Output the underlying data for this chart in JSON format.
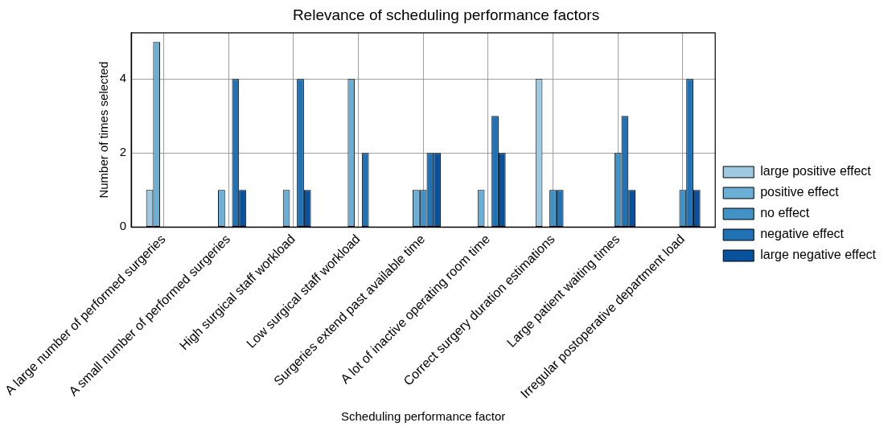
{
  "chart_data": {
    "type": "bar",
    "title": "Relevance of scheduling performance factors",
    "xlabel": "Scheduling performance factor",
    "ylabel": "Number of times selected",
    "categories": [
      "A large number of performed surgeries",
      "A small number of performed surgeries",
      "High surgical staff workload",
      "Low surgical staff workload",
      "Surgeries extend past available time",
      "A lot of inactive operating room time",
      "Correct surgery duration estimations",
      "Large patient waiting times",
      "Irregular postoperative department load"
    ],
    "series": [
      {
        "name": "large positive effect",
        "color": "#9ecae1",
        "values": [
          1,
          0,
          0,
          0,
          0,
          0,
          4,
          0,
          0
        ]
      },
      {
        "name": "positive effect",
        "color": "#6baed6",
        "values": [
          5,
          1,
          1,
          4,
          1,
          1,
          0,
          0,
          0
        ]
      },
      {
        "name": "no effect",
        "color": "#4292c6",
        "values": [
          0,
          0,
          0,
          0,
          1,
          0,
          1,
          2,
          1
        ]
      },
      {
        "name": "negative effect",
        "color": "#2171b5",
        "values": [
          0,
          4,
          4,
          2,
          2,
          3,
          1,
          3,
          4
        ]
      },
      {
        "name": "large negative effect",
        "color": "#08519c",
        "values": [
          0,
          1,
          1,
          0,
          2,
          2,
          0,
          1,
          1
        ]
      }
    ],
    "ylim": [
      0,
      5.25
    ],
    "yticks": [
      0,
      2,
      4
    ],
    "grid": true,
    "legend": "right"
  }
}
